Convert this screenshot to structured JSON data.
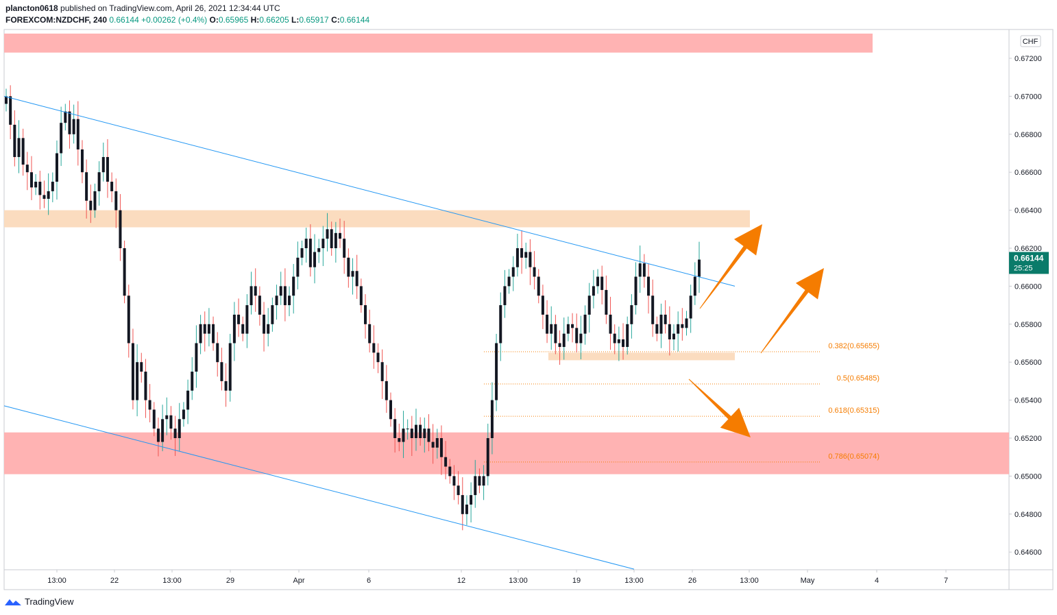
{
  "header": {
    "author": "plancton0618",
    "published_on": "published on TradingView.com, April 26, 2021 12:34:44 UTC",
    "symbol": "FOREXCOM:NZDCHF, 240",
    "last": "0.66144",
    "change": "+0.00262 (+0.4%)",
    "o_label": "O:",
    "o_value": "0.65965",
    "h_label": "H:",
    "h_value": "0.66205",
    "l_label": "L:",
    "l_value": "0.65917",
    "c_label": "C:",
    "c_value": "0.66144"
  },
  "footer": {
    "brand": "TradingView"
  },
  "colors": {
    "up": "#26a69a",
    "down": "#ef5350",
    "body": "#131722",
    "trend": "#2196f3",
    "resistance": "#ffb3b3",
    "zone": "#fbdcbf",
    "fib": "#f57c00",
    "arrow": "#f57c00",
    "price_tag": "#0a7b6a"
  },
  "chart_data": {
    "type": "candlestick",
    "currency": "CHF",
    "price_tag": {
      "value": "0.66144",
      "countdown": "25:25"
    },
    "ylim": [
      0.6451,
      0.6728
    ],
    "x_ticks": [
      "13:00",
      "22",
      "13:00",
      "29",
      "Apr",
      "6",
      "12",
      "13:00",
      "19",
      "13:00",
      "26",
      "13:00",
      "May",
      "4",
      "7"
    ],
    "y_ticks": [
      "0.67200",
      "0.67000",
      "0.66800",
      "0.66600",
      "0.66400",
      "0.66200",
      "0.66000",
      "0.65800",
      "0.65600",
      "0.65400",
      "0.65200",
      "0.65000",
      "0.64800",
      "0.64600"
    ],
    "y_tick_values": [
      0.672,
      0.67,
      0.668,
      0.666,
      0.664,
      0.662,
      0.66,
      0.658,
      0.656,
      0.654,
      0.652,
      0.65,
      0.648,
      0.646
    ],
    "zones": [
      {
        "kind": "resistance",
        "from": 0.6723,
        "to": 0.6733
      },
      {
        "kind": "supply",
        "from": 0.6631,
        "to": 0.664
      },
      {
        "kind": "support",
        "from": 0.6501,
        "to": 0.6523
      },
      {
        "kind": "small",
        "from": 0.6561,
        "to": 0.6565
      }
    ],
    "fib_levels": [
      {
        "label": "0.382(0.65655)",
        "value": 0.65655
      },
      {
        "label": "0.5(0.65485)",
        "value": 0.65485
      },
      {
        "label": "0.618(0.65315)",
        "value": 0.65315
      },
      {
        "label": "0.786(0.65074)",
        "value": 0.65074
      }
    ],
    "trendlines": [
      {
        "from": 0.67,
        "to": 0.66
      },
      {
        "from": 0.6537,
        "to": 0.6451
      }
    ],
    "closes": [
      0.67,
      0.6685,
      0.6668,
      0.6678,
      0.6664,
      0.666,
      0.6652,
      0.6655,
      0.6648,
      0.6646,
      0.665,
      0.6655,
      0.667,
      0.6686,
      0.6692,
      0.668,
      0.6688,
      0.6672,
      0.666,
      0.6645,
      0.664,
      0.665,
      0.666,
      0.6668,
      0.6655,
      0.665,
      0.664,
      0.662,
      0.6595,
      0.657,
      0.654,
      0.656,
      0.6555,
      0.654,
      0.6535,
      0.6525,
      0.6518,
      0.653,
      0.6532,
      0.6525,
      0.652,
      0.653,
      0.6535,
      0.6545,
      0.6555,
      0.657,
      0.658,
      0.6575,
      0.658,
      0.657,
      0.656,
      0.655,
      0.6545,
      0.657,
      0.6585,
      0.658,
      0.6575,
      0.659,
      0.66,
      0.6595,
      0.6585,
      0.6575,
      0.658,
      0.659,
      0.6595,
      0.66,
      0.659,
      0.6595,
      0.6605,
      0.6615,
      0.662,
      0.6625,
      0.661,
      0.6618,
      0.662,
      0.6625,
      0.663,
      0.662,
      0.6628,
      0.6625,
      0.6615,
      0.6605,
      0.6608,
      0.66,
      0.659,
      0.658,
      0.657,
      0.6565,
      0.656,
      0.655,
      0.654,
      0.653,
      0.652,
      0.6518,
      0.6525,
      0.6525,
      0.652,
      0.6527,
      0.652,
      0.6525,
      0.6518,
      0.6515,
      0.652,
      0.651,
      0.6505,
      0.65,
      0.6495,
      0.649,
      0.648,
      0.6485,
      0.649,
      0.65,
      0.6495,
      0.65,
      0.652,
      0.654,
      0.657,
      0.659,
      0.66,
      0.6605,
      0.661,
      0.662,
      0.6615,
      0.6618,
      0.661,
      0.6605,
      0.6595,
      0.6585,
      0.6575,
      0.658,
      0.657,
      0.6568,
      0.6575,
      0.658,
      0.6578,
      0.657,
      0.6575,
      0.6585,
      0.6595,
      0.66,
      0.6605,
      0.6598,
      0.6585,
      0.6575,
      0.657,
      0.6572,
      0.6568,
      0.658,
      0.659,
      0.6605,
      0.6612,
      0.6605,
      0.6595,
      0.658,
      0.6575,
      0.6585,
      0.658,
      0.6572,
      0.6575,
      0.658,
      0.6578,
      0.6583,
      0.6595,
      0.6605,
      0.6614
    ]
  }
}
